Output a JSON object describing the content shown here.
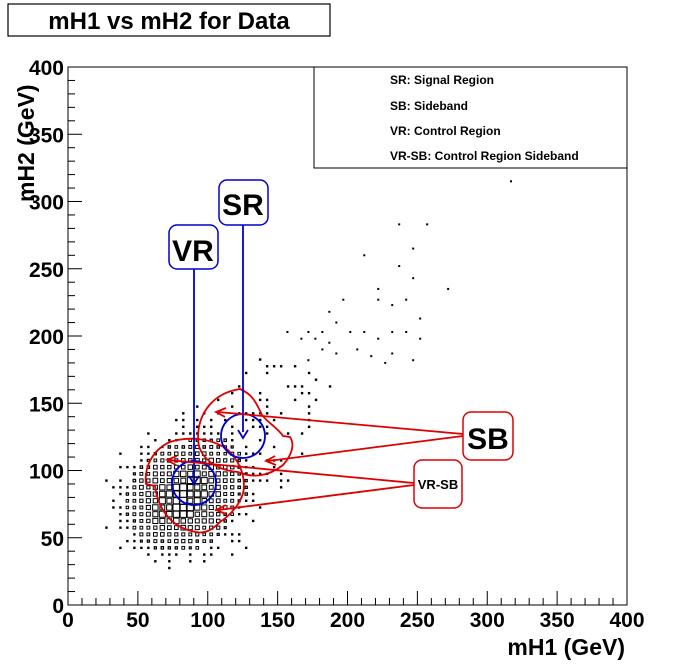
{
  "chart_data": {
    "type": "heatmap",
    "title": "mH1 vs mH2 for Data",
    "xlabel": "mH1 (GeV)",
    "ylabel": "mH2 (GeV)",
    "xlim": [
      0,
      400
    ],
    "ylim": [
      0,
      400
    ],
    "xticks": [
      "0",
      "50",
      "100",
      "150",
      "200",
      "250",
      "300",
      "350",
      "400"
    ],
    "yticks": [
      "0",
      "50",
      "100",
      "150",
      "200",
      "250",
      "300",
      "350",
      "400"
    ],
    "bin_width_gev": 5,
    "legend": {
      "position": "top-right",
      "entries": [
        "SR: Signal Region",
        "SB: Sideband",
        "VR: Control Region",
        "VR-SB: Control Region  Sideband"
      ]
    },
    "regions": {
      "SR": {
        "label": "SR",
        "center": [
          124,
          124
        ],
        "radius": 16,
        "color": "#0000cc"
      },
      "VR": {
        "label": "VR",
        "center": [
          92,
          92
        ],
        "radius": 16,
        "color": "#0000cc"
      },
      "SB": {
        "label": "SB",
        "center": [
          124,
          124
        ],
        "color": "#dd0000"
      },
      "VR_SB": {
        "label": "VR-SB",
        "center": [
          92,
          92
        ],
        "color": "#dd0000"
      }
    },
    "histogram": {
      "core_center": [
        80,
        78
      ],
      "core_peak_box_fraction": 1.0,
      "sparse_points": [
        [
          317,
          315
        ],
        [
          237,
          283
        ],
        [
          257,
          283
        ],
        [
          247,
          265
        ],
        [
          212,
          260
        ],
        [
          237,
          252
        ],
        [
          247,
          243
        ],
        [
          272,
          235
        ],
        [
          222,
          235
        ],
        [
          222,
          227
        ],
        [
          242,
          227
        ],
        [
          232,
          223
        ],
        [
          197,
          227
        ],
        [
          187,
          218
        ],
        [
          252,
          213
        ],
        [
          192,
          210
        ],
        [
          212,
          203
        ],
        [
          202,
          203
        ],
        [
          222,
          198
        ],
        [
          232,
          203
        ],
        [
          242,
          203
        ],
        [
          252,
          198
        ],
        [
          182,
          190
        ],
        [
          207,
          190
        ],
        [
          232,
          187
        ],
        [
          247,
          182
        ],
        [
          187,
          195
        ],
        [
          172,
          182
        ],
        [
          157,
          203
        ],
        [
          167,
          198
        ],
        [
          172,
          203
        ],
        [
          177,
          198
        ],
        [
          182,
          203
        ],
        [
          192,
          187
        ],
        [
          217,
          185
        ],
        [
          227,
          180
        ]
      ]
    }
  }
}
